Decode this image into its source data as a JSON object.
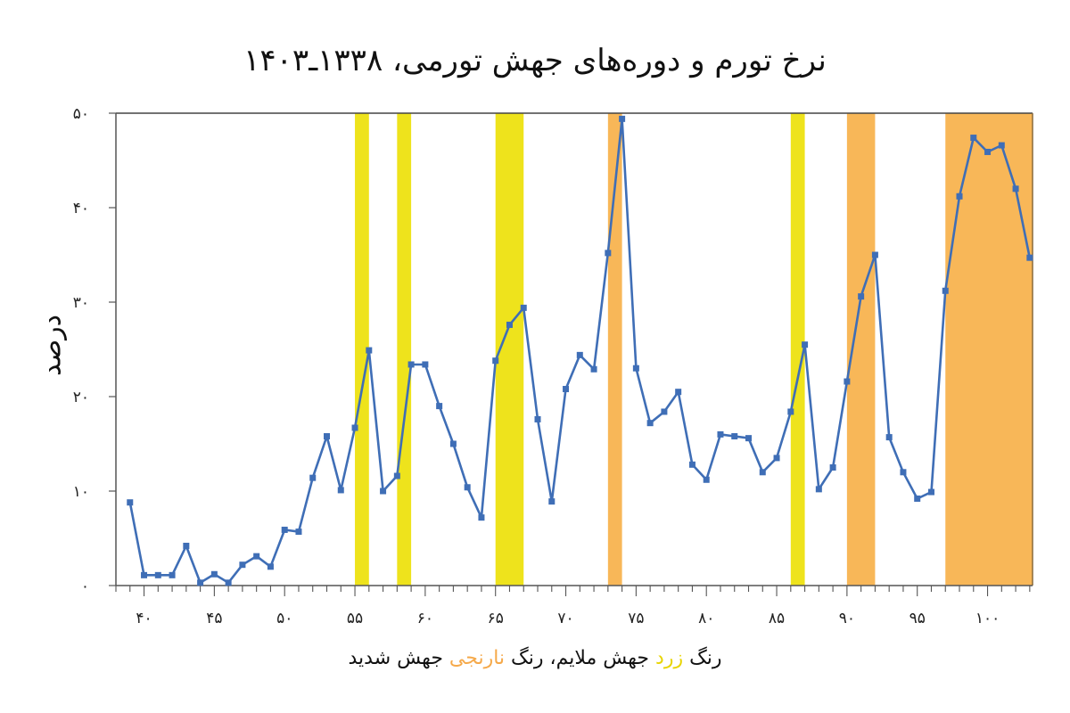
{
  "title": "نرخ تورم و دوره‌های جهش تورمی، ۱۳۳۸ـ۱۴۰۳",
  "legend": {
    "prefix": "رنگ ",
    "yellow_word": "زرد",
    "middle": " جهش ملایم، رنگ ",
    "orange_word": "نارنجی",
    "suffix": " جهش شدید"
  },
  "colors": {
    "line": "#3F6EB6",
    "yellow_band": "#EEE31C",
    "orange_band": "#F8B758",
    "axis": "#555555",
    "legend_yellow": "#E8D400",
    "legend_orange": "#F5A94A"
  },
  "chart_data": {
    "type": "line",
    "title": "نرخ تورم و دوره‌های جهش تورمی، ۱۳۳۸ـ۱۴۰۳",
    "xlabel": "رنگ زرد جهش ملایم، رنگ نارنجی جهش شدید",
    "ylabel": "درصد",
    "xlim": [
      1338,
      1403.2
    ],
    "ylim": [
      0,
      50
    ],
    "grid": false,
    "x_ticks": [
      1340,
      1345,
      1350,
      1355,
      1360,
      1365,
      1370,
      1375,
      1380,
      1385,
      1390,
      1395,
      1400
    ],
    "x_tick_labels": [
      "۴۰",
      "۴۵",
      "۵۰",
      "۵۵",
      "۶۰",
      "۶۵",
      "۷۰",
      "۷۵",
      "۸۰",
      "۸۵",
      "۹۰",
      "۹۵",
      "۱۰۰"
    ],
    "y_ticks": [
      0,
      10,
      20,
      30,
      40,
      50
    ],
    "y_tick_labels": [
      "۰",
      "۱۰",
      "۲۰",
      "۳۰",
      "۴۰",
      "۵۰"
    ],
    "series": [
      {
        "name": "نرخ تورم",
        "x": [
          1339,
          1340,
          1341,
          1342,
          1343,
          1344,
          1345,
          1346,
          1347,
          1348,
          1349,
          1350,
          1351,
          1352,
          1353,
          1354,
          1355,
          1356,
          1357,
          1358,
          1359,
          1360,
          1361,
          1362,
          1363,
          1364,
          1365,
          1366,
          1367,
          1368,
          1369,
          1370,
          1371,
          1372,
          1373,
          1374,
          1375,
          1376,
          1377,
          1378,
          1379,
          1380,
          1381,
          1382,
          1383,
          1384,
          1385,
          1386,
          1387,
          1388,
          1389,
          1390,
          1391,
          1392,
          1393,
          1394,
          1395,
          1396,
          1397,
          1398,
          1399,
          1400,
          1401,
          1402,
          1403
        ],
        "values": [
          8.8,
          1.1,
          1.1,
          1.1,
          4.2,
          0.3,
          1.2,
          0.3,
          2.2,
          3.1,
          2.0,
          5.9,
          5.7,
          11.4,
          15.8,
          10.1,
          16.7,
          24.9,
          10.0,
          11.6,
          23.4,
          23.4,
          19.0,
          15.0,
          10.4,
          7.2,
          23.8,
          27.6,
          29.4,
          17.6,
          8.9,
          20.8,
          24.4,
          22.9,
          35.2,
          49.4,
          23.0,
          17.2,
          18.4,
          20.5,
          12.8,
          11.2,
          16.0,
          15.8,
          15.6,
          12.0,
          13.5,
          18.4,
          25.5,
          10.2,
          12.5,
          21.6,
          30.6,
          35.0,
          15.7,
          12.0,
          9.2,
          9.9,
          31.2,
          41.2,
          47.4,
          45.9,
          46.6,
          42.0,
          34.7
        ]
      }
    ],
    "bands": [
      {
        "type": "yellow",
        "meaning": "جهش ملایم",
        "from": 1355,
        "to": 1356
      },
      {
        "type": "yellow",
        "meaning": "جهش ملایم",
        "from": 1358,
        "to": 1359
      },
      {
        "type": "yellow",
        "meaning": "جهش ملایم",
        "from": 1365,
        "to": 1367
      },
      {
        "type": "orange",
        "meaning": "جهش شدید",
        "from": 1373,
        "to": 1374
      },
      {
        "type": "yellow",
        "meaning": "جهش ملایم",
        "from": 1386,
        "to": 1387
      },
      {
        "type": "orange",
        "meaning": "جهش شدید",
        "from": 1390,
        "to": 1392
      },
      {
        "type": "orange",
        "meaning": "جهش شدید",
        "from": 1397,
        "to": 1403.2
      }
    ]
  }
}
